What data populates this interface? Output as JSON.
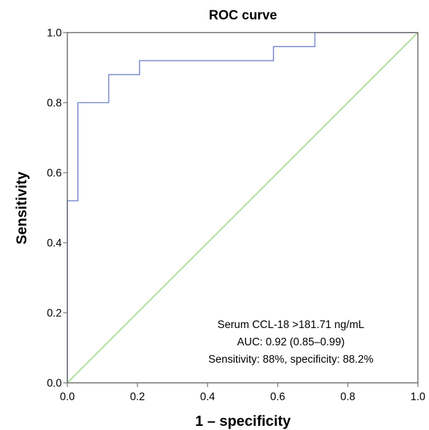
{
  "chart_data": {
    "type": "line",
    "title": "ROC curve",
    "xlabel": "1 – specificity",
    "ylabel": "Sensitivity",
    "xlim": [
      0,
      1
    ],
    "ylim": [
      0,
      1
    ],
    "x_ticks": [
      "0.0",
      "0.2",
      "0.4",
      "0.6",
      "0.8",
      "1.0"
    ],
    "y_ticks": [
      "0.0",
      "0.2",
      "0.4",
      "0.6",
      "0.8",
      "1.0"
    ],
    "grid": false,
    "series": [
      {
        "color": "#7b8fcf",
        "style": "step",
        "x": [
          0,
          0,
          0.03,
          0.03,
          0.118,
          0.118,
          0.206,
          0.206,
          0.588,
          0.588,
          0.706,
          0.706,
          1.0
        ],
        "y": [
          0,
          0.52,
          0.52,
          0.8,
          0.8,
          0.88,
          0.88,
          0.92,
          0.92,
          0.96,
          0.96,
          1.0,
          1.0
        ]
      },
      {
        "color": "#a8dc8c",
        "style": "reference",
        "x": [
          0,
          1
        ],
        "y": [
          0,
          1
        ]
      }
    ],
    "annotations": [
      "Serum CCL-18  >181.71 ng/mL",
      "AUC: 0.92 (0.85–0.99)",
      "Sensitivity: 88%, specificity: 88.2%"
    ]
  },
  "colors": {
    "frame": "#6e6e6e",
    "roc_line": "#7b8fcf",
    "reference_line": "#a8dc8c"
  }
}
